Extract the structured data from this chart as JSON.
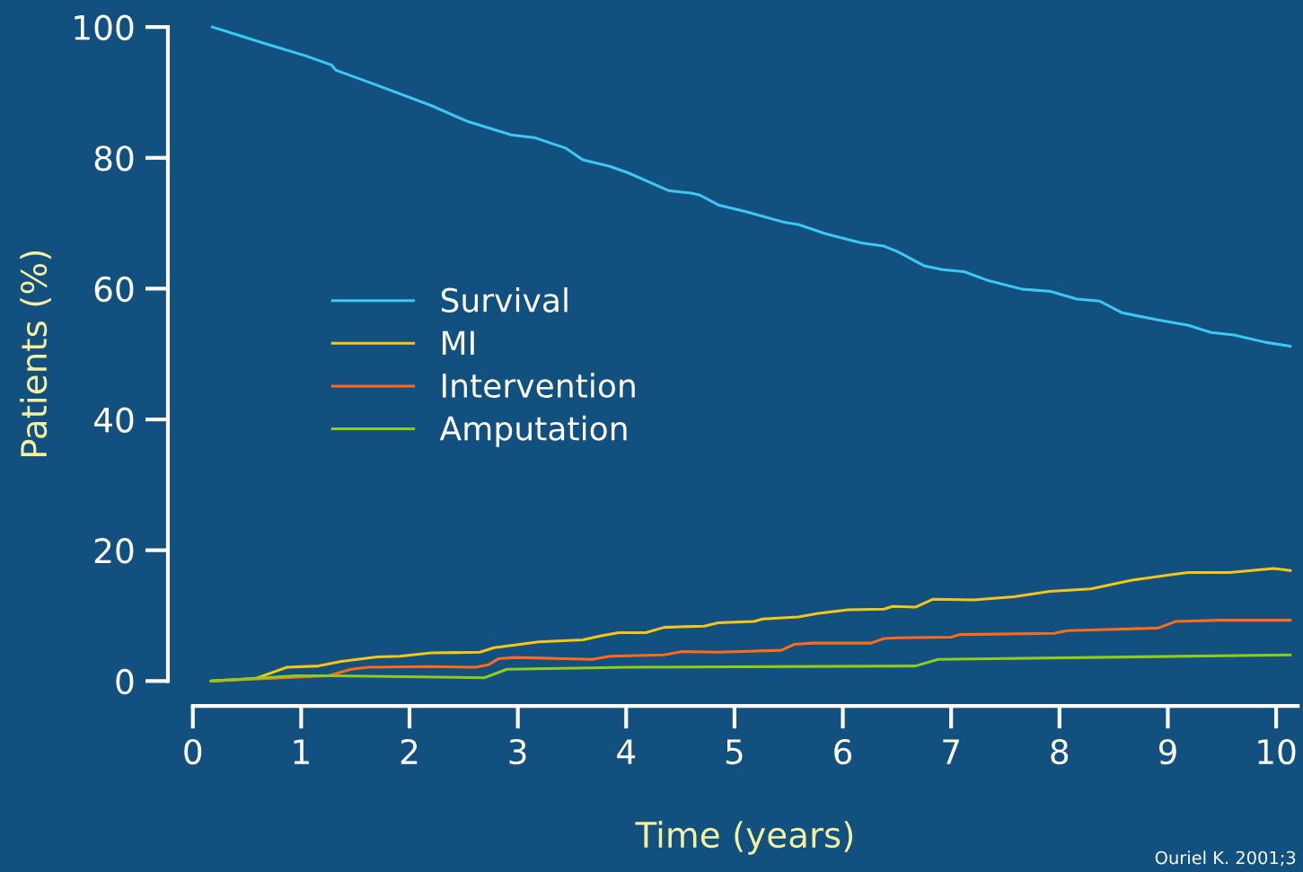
{
  "chart_data": {
    "type": "line",
    "xlabel": "Time (years)",
    "ylabel": "Patients (%)",
    "xlim": [
      0,
      10.2
    ],
    "xticks": [
      0,
      1,
      2,
      3,
      4,
      5,
      6,
      7,
      8,
      9,
      10
    ],
    "ylim": [
      0,
      100
    ],
    "yticks": [
      0,
      20,
      40,
      60,
      80,
      100
    ],
    "grid": false,
    "legend": "left",
    "marker": "none",
    "line_style": "solid",
    "annotations": [
      "Ouriel K. 2001;3"
    ],
    "series": [
      {
        "name": "Survival",
        "color": "#3cc8f5",
        "x": [
          0.18,
          0.7,
          1.04,
          1.28,
          1.32,
          1.7,
          2.2,
          2.53,
          2.94,
          3.15,
          3.44,
          3.6,
          3.85,
          4.02,
          4.39,
          4.6,
          4.68,
          4.85,
          5.1,
          5.47,
          5.59,
          5.84,
          6.17,
          6.38,
          6.5,
          6.75,
          6.92,
          7.12,
          7.33,
          7.66,
          7.91,
          8.16,
          8.37,
          8.58,
          8.91,
          9.19,
          9.4,
          9.61,
          9.9,
          10.13
        ],
        "values": [
          100,
          97.3,
          95.6,
          94.2,
          93.4,
          91.1,
          88.0,
          85.6,
          83.5,
          83.1,
          81.5,
          79.7,
          78.7,
          77.7,
          75.0,
          74.6,
          74.3,
          72.8,
          71.8,
          70.1,
          69.8,
          68.4,
          67.0,
          66.5,
          65.7,
          63.5,
          62.9,
          62.6,
          61.3,
          59.9,
          59.6,
          58.4,
          58.1,
          56.3,
          55.2,
          54.4,
          53.3,
          52.9,
          51.8,
          51.2
        ]
      },
      {
        "name": "MI",
        "color": "#f5c518",
        "x": [
          0.17,
          0.58,
          0.75,
          0.87,
          1.16,
          1.37,
          1.7,
          1.91,
          2.2,
          2.65,
          2.78,
          3.02,
          3.19,
          3.6,
          3.77,
          3.93,
          4.18,
          4.35,
          4.72,
          4.85,
          5.18,
          5.26,
          5.59,
          5.76,
          6.05,
          6.38,
          6.46,
          6.67,
          6.83,
          7.21,
          7.58,
          7.91,
          8.29,
          8.66,
          9.04,
          9.19,
          9.57,
          9.98,
          10.13
        ],
        "values": [
          0,
          0.4,
          1.4,
          2.1,
          2.3,
          3.0,
          3.7,
          3.8,
          4.3,
          4.4,
          5.1,
          5.6,
          6.0,
          6.3,
          6.9,
          7.4,
          7.4,
          8.2,
          8.4,
          8.9,
          9.1,
          9.5,
          9.8,
          10.3,
          10.9,
          11.0,
          11.4,
          11.3,
          12.5,
          12.4,
          12.9,
          13.7,
          14.1,
          15.4,
          16.3,
          16.6,
          16.6,
          17.2,
          16.9
        ]
      },
      {
        "name": "Intervention",
        "color": "#ff6a1a",
        "x": [
          0.17,
          1.25,
          1.46,
          1.62,
          2.2,
          2.61,
          2.73,
          2.82,
          2.98,
          3.69,
          3.85,
          4.35,
          4.52,
          4.85,
          5.43,
          5.55,
          5.72,
          6.26,
          6.38,
          6.5,
          7.0,
          7.08,
          7.95,
          8.07,
          8.91,
          9.07,
          9.49,
          10.13
        ],
        "values": [
          0,
          0.8,
          1.8,
          2.1,
          2.2,
          2.1,
          2.5,
          3.4,
          3.6,
          3.3,
          3.8,
          4.0,
          4.5,
          4.4,
          4.7,
          5.6,
          5.8,
          5.8,
          6.5,
          6.6,
          6.7,
          7.1,
          7.3,
          7.7,
          8.1,
          9.1,
          9.3,
          9.3
        ]
      },
      {
        "name": "Amputation",
        "color": "#8fcc1a",
        "x": [
          0.17,
          0.95,
          1.28,
          2.69,
          2.9,
          4.02,
          6.67,
          6.88,
          10.13
        ],
        "values": [
          0,
          0.8,
          0.8,
          0.5,
          1.8,
          2.1,
          2.3,
          3.3,
          4.0
        ]
      }
    ]
  }
}
